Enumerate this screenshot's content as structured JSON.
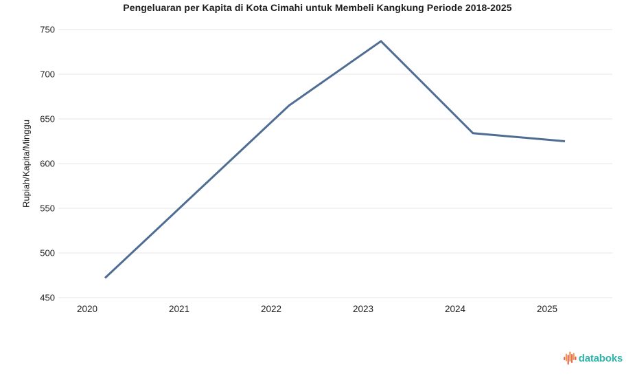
{
  "page": {
    "title": "Pengeluaran per Kapita di Kota Cimahi untuk Membeli Kangkung Periode 2018-2025"
  },
  "y_axis_title": "Rupiah/Kapita/Minggu",
  "branding": {
    "logo_text": "databoks",
    "logo_text_color": "#2FB3AB",
    "logo_bar_colors": [
      "#E25C4B",
      "#F29A4A",
      "#E25C4B",
      "#F08A3C",
      "#EC6A55",
      "#F29A4A",
      "#E25C4B"
    ]
  },
  "colors": {
    "line": "#4F6D92",
    "grid": "#E4E4E4",
    "text": "#1C1C1C",
    "background": "#FFFFFF"
  },
  "chart_data": {
    "type": "line",
    "title": "Pengeluaran per Kapita di Kota Cimahi untuk Membeli Kangkung Periode 2018-2025",
    "xlabel": "",
    "ylabel": "Rupiah/Kapita/Minggu",
    "x": [
      2020,
      2022,
      2023,
      2024,
      2025
    ],
    "values": [
      472,
      665,
      737,
      634,
      625
    ],
    "note": "no vertex visible at 2021; the line runs straight from the 2020 point to the 2022 point",
    "x_tick_labels": [
      "2020",
      "2021",
      "2022",
      "2023",
      "2024",
      "2025"
    ],
    "y_ticks": [
      450,
      500,
      550,
      600,
      650,
      700,
      750
    ],
    "ylim": [
      450,
      750
    ],
    "grid": "horizontal-only",
    "legend": "none",
    "line_color": "#4F6D92"
  }
}
